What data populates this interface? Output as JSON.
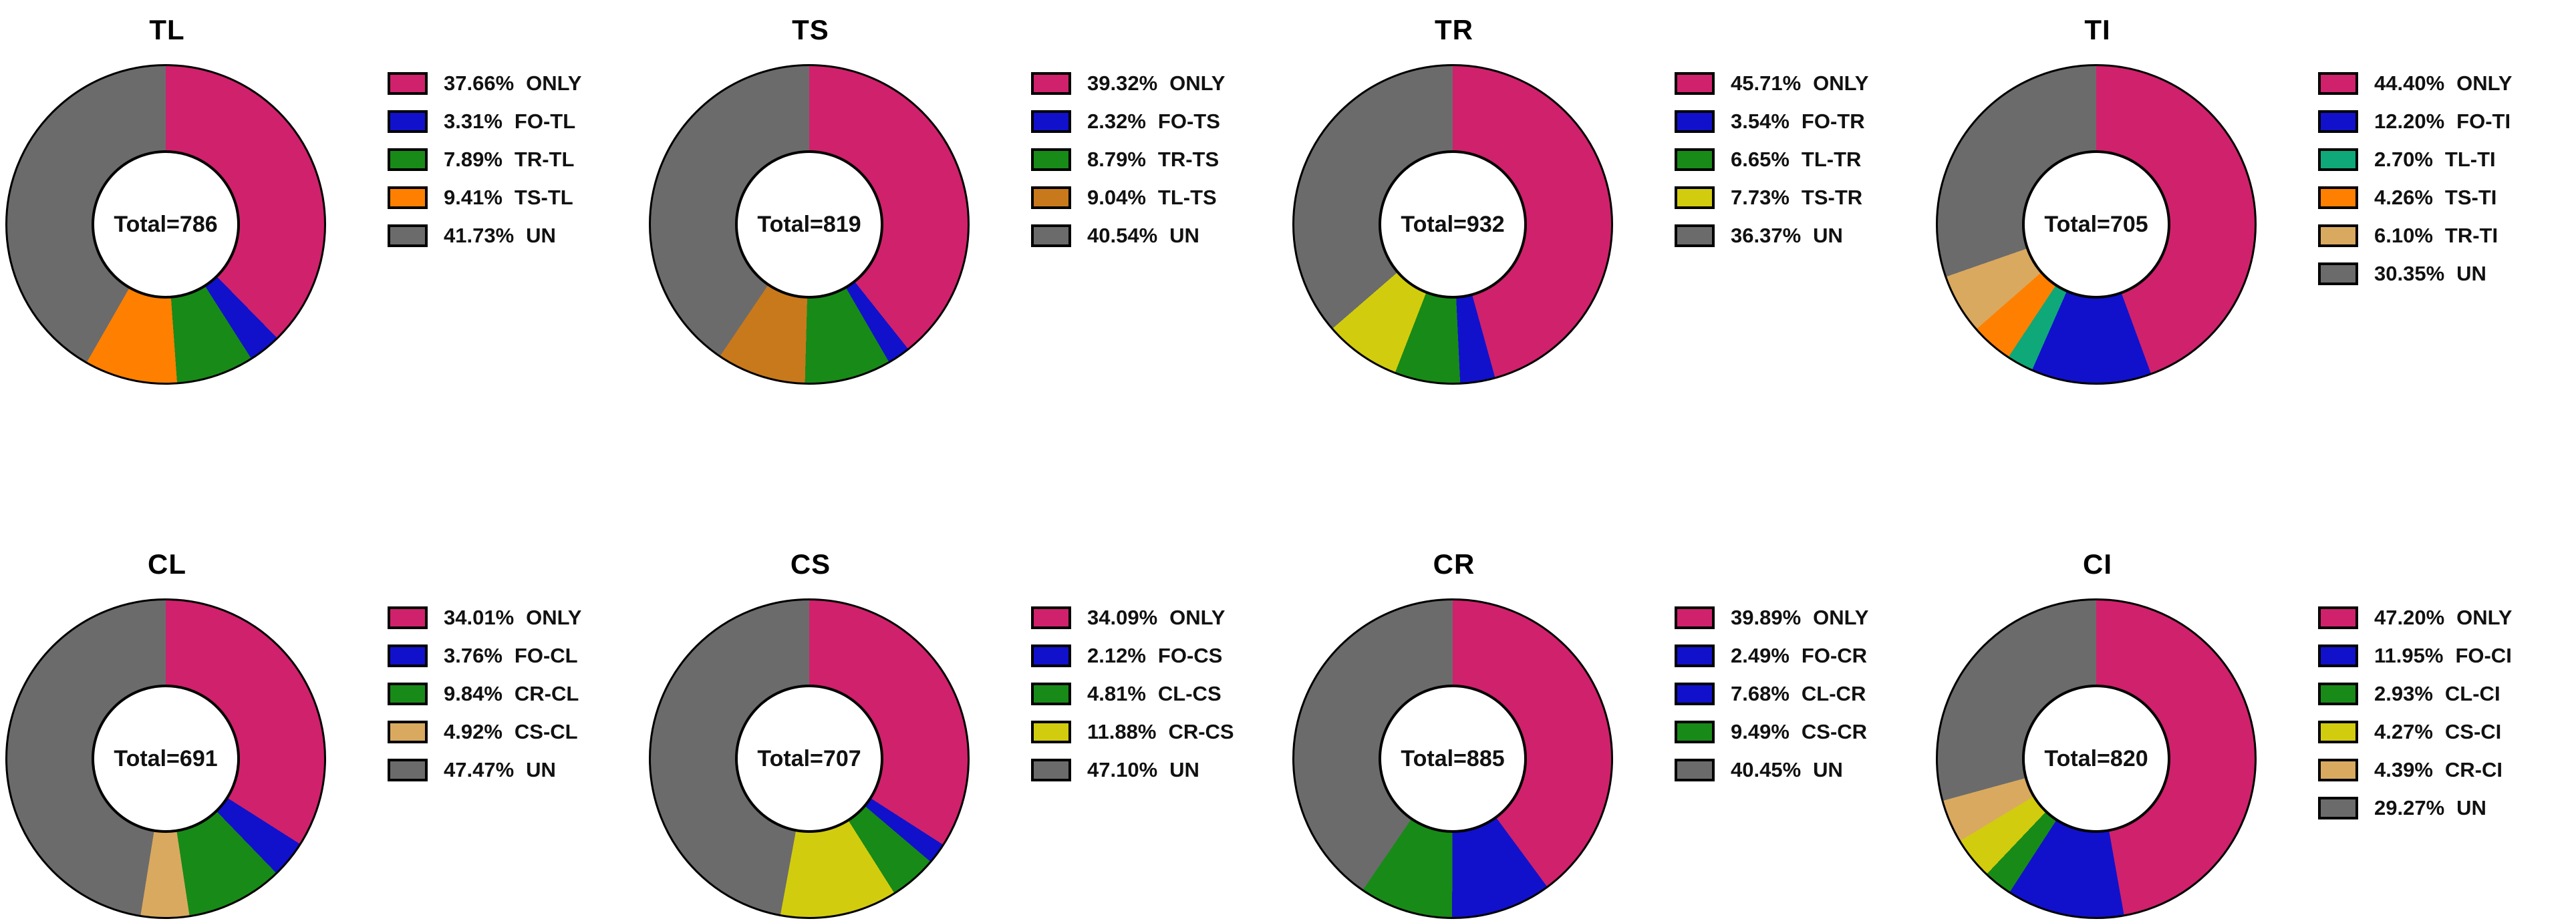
{
  "figure": {
    "background": "#ffffff",
    "layout": "2 rows x 4 columns of donut charts with right-side legends"
  },
  "colors": {
    "pink": "#D0216C",
    "blue": "#1111CC",
    "green": "#188A18",
    "orange": "#FF8000",
    "ochre": "#C8791B",
    "yellow": "#D2CC0E",
    "teal": "#0FA878",
    "tan": "#D9A95F",
    "gray": "#6B6B6B"
  },
  "chart_data": [
    {
      "type": "pie",
      "subtype": "donut",
      "title": "TL",
      "total": 786,
      "center_label": "Total=786",
      "legend_position": "right",
      "start_angle_deg": 0,
      "direction": "clockwise",
      "slices": [
        {
          "pct_label": "37.66%",
          "value": 37.66,
          "label": "ONLY",
          "color": "pink"
        },
        {
          "pct_label": "3.31%",
          "value": 3.31,
          "label": "FO-TL",
          "color": "blue"
        },
        {
          "pct_label": "7.89%",
          "value": 7.89,
          "label": "TR-TL",
          "color": "green"
        },
        {
          "pct_label": "9.41%",
          "value": 9.41,
          "label": "TS-TL",
          "color": "orange"
        },
        {
          "pct_label": "41.73%",
          "value": 41.73,
          "label": "UN",
          "color": "gray"
        }
      ]
    },
    {
      "type": "pie",
      "subtype": "donut",
      "title": "TS",
      "total": 819,
      "center_label": "Total=819",
      "legend_position": "right",
      "start_angle_deg": 0,
      "direction": "clockwise",
      "slices": [
        {
          "pct_label": "39.32%",
          "value": 39.32,
          "label": "ONLY",
          "color": "pink"
        },
        {
          "pct_label": "2.32%",
          "value": 2.32,
          "label": "FO-TS",
          "color": "blue"
        },
        {
          "pct_label": "8.79%",
          "value": 8.79,
          "label": "TR-TS",
          "color": "green"
        },
        {
          "pct_label": "9.04%",
          "value": 9.04,
          "label": "TL-TS",
          "color": "ochre"
        },
        {
          "pct_label": "40.54%",
          "value": 40.54,
          "label": "UN",
          "color": "gray"
        }
      ]
    },
    {
      "type": "pie",
      "subtype": "donut",
      "title": "TR",
      "total": 932,
      "center_label": "Total=932",
      "legend_position": "right",
      "start_angle_deg": 0,
      "direction": "clockwise",
      "slices": [
        {
          "pct_label": "45.71%",
          "value": 45.71,
          "label": "ONLY",
          "color": "pink"
        },
        {
          "pct_label": "3.54%",
          "value": 3.54,
          "label": "FO-TR",
          "color": "blue"
        },
        {
          "pct_label": "6.65%",
          "value": 6.65,
          "label": "TL-TR",
          "color": "green"
        },
        {
          "pct_label": "7.73%",
          "value": 7.73,
          "label": "TS-TR",
          "color": "yellow"
        },
        {
          "pct_label": "36.37%",
          "value": 36.37,
          "label": "UN",
          "color": "gray"
        }
      ]
    },
    {
      "type": "pie",
      "subtype": "donut",
      "title": "TI",
      "total": 705,
      "center_label": "Total=705",
      "legend_position": "right",
      "start_angle_deg": 0,
      "direction": "clockwise",
      "slices": [
        {
          "pct_label": "44.40%",
          "value": 44.4,
          "label": "ONLY",
          "color": "pink"
        },
        {
          "pct_label": "12.20%",
          "value": 12.2,
          "label": "FO-TI",
          "color": "blue"
        },
        {
          "pct_label": "2.70%",
          "value": 2.7,
          "label": "TL-TI",
          "color": "teal"
        },
        {
          "pct_label": "4.26%",
          "value": 4.26,
          "label": "TS-TI",
          "color": "orange"
        },
        {
          "pct_label": "6.10%",
          "value": 6.1,
          "label": "TR-TI",
          "color": "tan"
        },
        {
          "pct_label": "30.35%",
          "value": 30.35,
          "label": "UN",
          "color": "gray"
        }
      ]
    },
    {
      "type": "pie",
      "subtype": "donut",
      "title": "CL",
      "total": 691,
      "center_label": "Total=691",
      "legend_position": "right",
      "start_angle_deg": 0,
      "direction": "clockwise",
      "slices": [
        {
          "pct_label": "34.01%",
          "value": 34.01,
          "label": "ONLY",
          "color": "pink"
        },
        {
          "pct_label": "3.76%",
          "value": 3.76,
          "label": "FO-CL",
          "color": "blue"
        },
        {
          "pct_label": "9.84%",
          "value": 9.84,
          "label": "CR-CL",
          "color": "green"
        },
        {
          "pct_label": "4.92%",
          "value": 4.92,
          "label": "CS-CL",
          "color": "tan"
        },
        {
          "pct_label": "47.47%",
          "value": 47.47,
          "label": "UN",
          "color": "gray"
        }
      ]
    },
    {
      "type": "pie",
      "subtype": "donut",
      "title": "CS",
      "total": 707,
      "center_label": "Total=707",
      "legend_position": "right",
      "start_angle_deg": 0,
      "direction": "clockwise",
      "slices": [
        {
          "pct_label": "34.09%",
          "value": 34.09,
          "label": "ONLY",
          "color": "pink"
        },
        {
          "pct_label": "2.12%",
          "value": 2.12,
          "label": "FO-CS",
          "color": "blue"
        },
        {
          "pct_label": "4.81%",
          "value": 4.81,
          "label": "CL-CS",
          "color": "green"
        },
        {
          "pct_label": "11.88%",
          "value": 11.88,
          "label": "CR-CS",
          "color": "yellow"
        },
        {
          "pct_label": "47.10%",
          "value": 47.1,
          "label": "UN",
          "color": "gray"
        }
      ]
    },
    {
      "type": "pie",
      "subtype": "donut",
      "title": "CR",
      "total": 885,
      "center_label": "Total=885",
      "legend_position": "right",
      "start_angle_deg": 0,
      "direction": "clockwise",
      "slices": [
        {
          "pct_label": "39.89%",
          "value": 39.89,
          "label": "ONLY",
          "color": "pink"
        },
        {
          "pct_label": "2.49%",
          "value": 2.49,
          "label": "FO-CR",
          "color": "blue"
        },
        {
          "pct_label": "7.68%",
          "value": 7.68,
          "label": "CL-CR",
          "color": "blue"
        },
        {
          "pct_label": "9.49%",
          "value": 9.49,
          "label": "CS-CR",
          "color": "green"
        },
        {
          "pct_label": "40.45%",
          "value": 40.45,
          "label": "UN",
          "color": "gray"
        }
      ]
    },
    {
      "type": "pie",
      "subtype": "donut",
      "title": "CI",
      "total": 820,
      "center_label": "Total=820",
      "legend_position": "right",
      "start_angle_deg": 0,
      "direction": "clockwise",
      "slices": [
        {
          "pct_label": "47.20%",
          "value": 47.2,
          "label": "ONLY",
          "color": "pink"
        },
        {
          "pct_label": "11.95%",
          "value": 11.95,
          "label": "FO-CI",
          "color": "blue"
        },
        {
          "pct_label": "2.93%",
          "value": 2.93,
          "label": "CL-CI",
          "color": "green"
        },
        {
          "pct_label": "4.27%",
          "value": 4.27,
          "label": "CS-CI",
          "color": "yellow"
        },
        {
          "pct_label": "4.39%",
          "value": 4.39,
          "label": "CR-CI",
          "color": "tan"
        },
        {
          "pct_label": "29.27%",
          "value": 29.27,
          "label": "UN",
          "color": "gray"
        }
      ]
    }
  ]
}
